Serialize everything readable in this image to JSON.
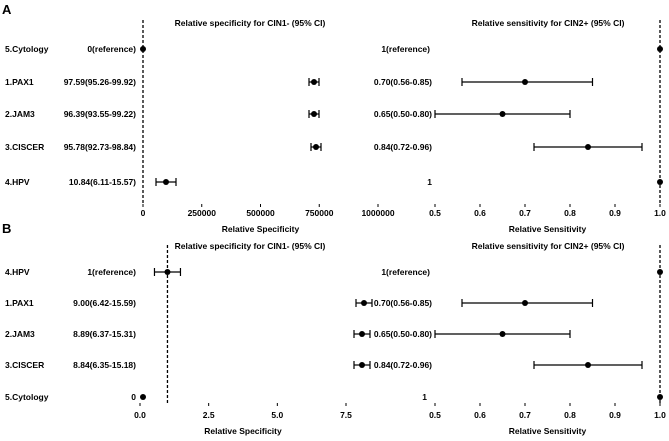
{
  "chart_data": [
    {
      "panel": "A",
      "type": "forest",
      "rows": [
        "5.Cytology",
        "1.PAX1",
        "2.JAM3",
        "3.CISCER",
        "4.HPV"
      ],
      "charts": [
        {
          "title": "Relative specificity for CIN1- (95% CI)",
          "xlabel": "Relative Specificity",
          "xlim": [
            0,
            1000000
          ],
          "ticks": [
            0,
            250000,
            500000,
            750000,
            1000000
          ],
          "tick_labels": [
            "0",
            "250000",
            "500000",
            "750000",
            "1000000"
          ],
          "ref": 0,
          "points": [
            {
              "value": 0,
              "lo": null,
              "hi": null
            },
            {
              "value": 97.59,
              "lo": 95.26,
              "hi": 99.92
            },
            {
              "value": 96.39,
              "lo": 93.55,
              "hi": 99.22
            },
            {
              "value": 95.78,
              "lo": 92.73,
              "hi": 98.84
            },
            {
              "value": 10.84,
              "lo": 6.11,
              "hi": 15.57
            }
          ],
          "labels": [
            "0(reference)",
            "97.59(95.26-99.92)",
            "96.39(93.55-99.22)",
            "95.78(92.73-98.84)",
            "10.84(6.11-15.57)"
          ]
        },
        {
          "title": "Relative sensitivity for CIN2+ (95% CI)",
          "xlabel": "Relative Sensitivity",
          "xlim": [
            0.5,
            1.0
          ],
          "ticks": [
            0.5,
            0.6,
            0.7,
            0.8,
            0.9,
            1.0
          ],
          "tick_labels": [
            "0.5",
            "0.6",
            "0.7",
            "0.8",
            "0.9",
            "1.0"
          ],
          "ref": 1.0,
          "points": [
            {
              "value": 1.0,
              "lo": null,
              "hi": null
            },
            {
              "value": 0.7,
              "lo": 0.56,
              "hi": 0.85
            },
            {
              "value": 0.65,
              "lo": 0.5,
              "hi": 0.8
            },
            {
              "value": 0.84,
              "lo": 0.72,
              "hi": 0.96
            },
            {
              "value": 1.0,
              "lo": null,
              "hi": null
            }
          ],
          "labels": [
            "1(reference)",
            "0.70(0.56-0.85)",
            "0.65(0.50-0.80)",
            "0.84(0.72-0.96)",
            "1"
          ]
        }
      ]
    },
    {
      "panel": "B",
      "type": "forest",
      "rows": [
        "4.HPV",
        "1.PAX1",
        "2.JAM3",
        "3.CISCER",
        "5.Cytology"
      ],
      "charts": [
        {
          "title": "Relative specificity for CIN1- (95% CI)",
          "xlabel": "Relative Specificity",
          "xlim": [
            0,
            7.5
          ],
          "ticks": [
            0,
            2.5,
            5.0,
            7.5
          ],
          "tick_labels": [
            "0.0",
            "2.5",
            "5.0",
            "7.5"
          ],
          "ref": 1,
          "points": [
            {
              "value": 1,
              "lo": null,
              "hi": null
            },
            {
              "value": 9.0,
              "lo": 6.42,
              "hi": 15.59
            },
            {
              "value": 8.89,
              "lo": 6.37,
              "hi": 15.31
            },
            {
              "value": 8.84,
              "lo": 6.35,
              "hi": 15.18
            },
            {
              "value": 0,
              "lo": null,
              "hi": null
            }
          ],
          "labels": [
            "1(reference)",
            "9.00(6.42-15.59)",
            "8.89(6.37-15.31)",
            "8.84(6.35-15.18)",
            "0"
          ]
        },
        {
          "title": "Relative sensitivity for CIN2+ (95% CI)",
          "xlabel": "Relative Sensitivity",
          "xlim": [
            0.5,
            1.0
          ],
          "ticks": [
            0.5,
            0.6,
            0.7,
            0.8,
            0.9,
            1.0
          ],
          "tick_labels": [
            "0.5",
            "0.6",
            "0.7",
            "0.8",
            "0.9",
            "1.0"
          ],
          "ref": 1.0,
          "points": [
            {
              "value": 1.0,
              "lo": null,
              "hi": null
            },
            {
              "value": 0.7,
              "lo": 0.56,
              "hi": 0.85
            },
            {
              "value": 0.65,
              "lo": 0.5,
              "hi": 0.8
            },
            {
              "value": 0.84,
              "lo": 0.72,
              "hi": 0.96
            },
            {
              "value": 1.0,
              "lo": null,
              "hi": null
            }
          ],
          "labels": [
            "1(reference)",
            "0.70(0.56-0.85)",
            "0.65(0.50-0.80)",
            "0.84(0.72-0.96)",
            "1"
          ]
        }
      ]
    }
  ]
}
